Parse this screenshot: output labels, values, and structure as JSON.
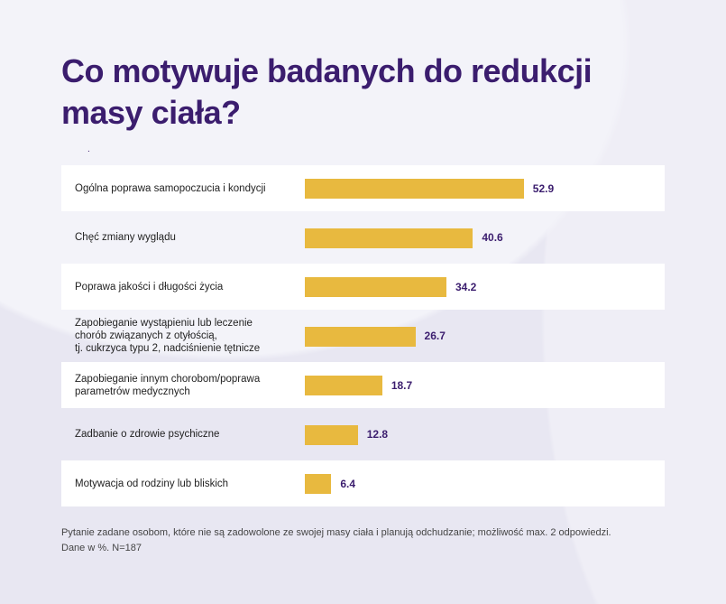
{
  "chart_data": {
    "type": "bar",
    "orientation": "horizontal",
    "title": "Co motywuje badanych do redukcji masy ciała?",
    "categories": [
      "Ogólna poprawa samopoczucia i kondycji",
      "Chęć zmiany wyglądu",
      "Poprawa jakości i długości życia",
      "Zapobieganie wystąpieniu lub leczenie\nchorób związanych z otyłością,\ntj. cukrzyca typu 2, nadciśnienie tętnicze",
      "Zapobieganie innym chorobom/poprawa\nparametrów medycznych",
      "Zadbanie o zdrowie psychiczne",
      "Motywacja od rodziny lub bliskich"
    ],
    "values": [
      52.9,
      40.6,
      34.2,
      26.7,
      18.7,
      12.8,
      6.4
    ],
    "xlim": [
      0,
      100
    ],
    "bar_color": "#e8b93f",
    "label_color": "#3b1d6e"
  },
  "note": [
    "Pytanie zadane osobom, które nie są zadowolone ze swojej masy ciała i planują odchudzanie; możliwość max. 2 odpowiedzi.",
    "Dane w %. N=187"
  ]
}
